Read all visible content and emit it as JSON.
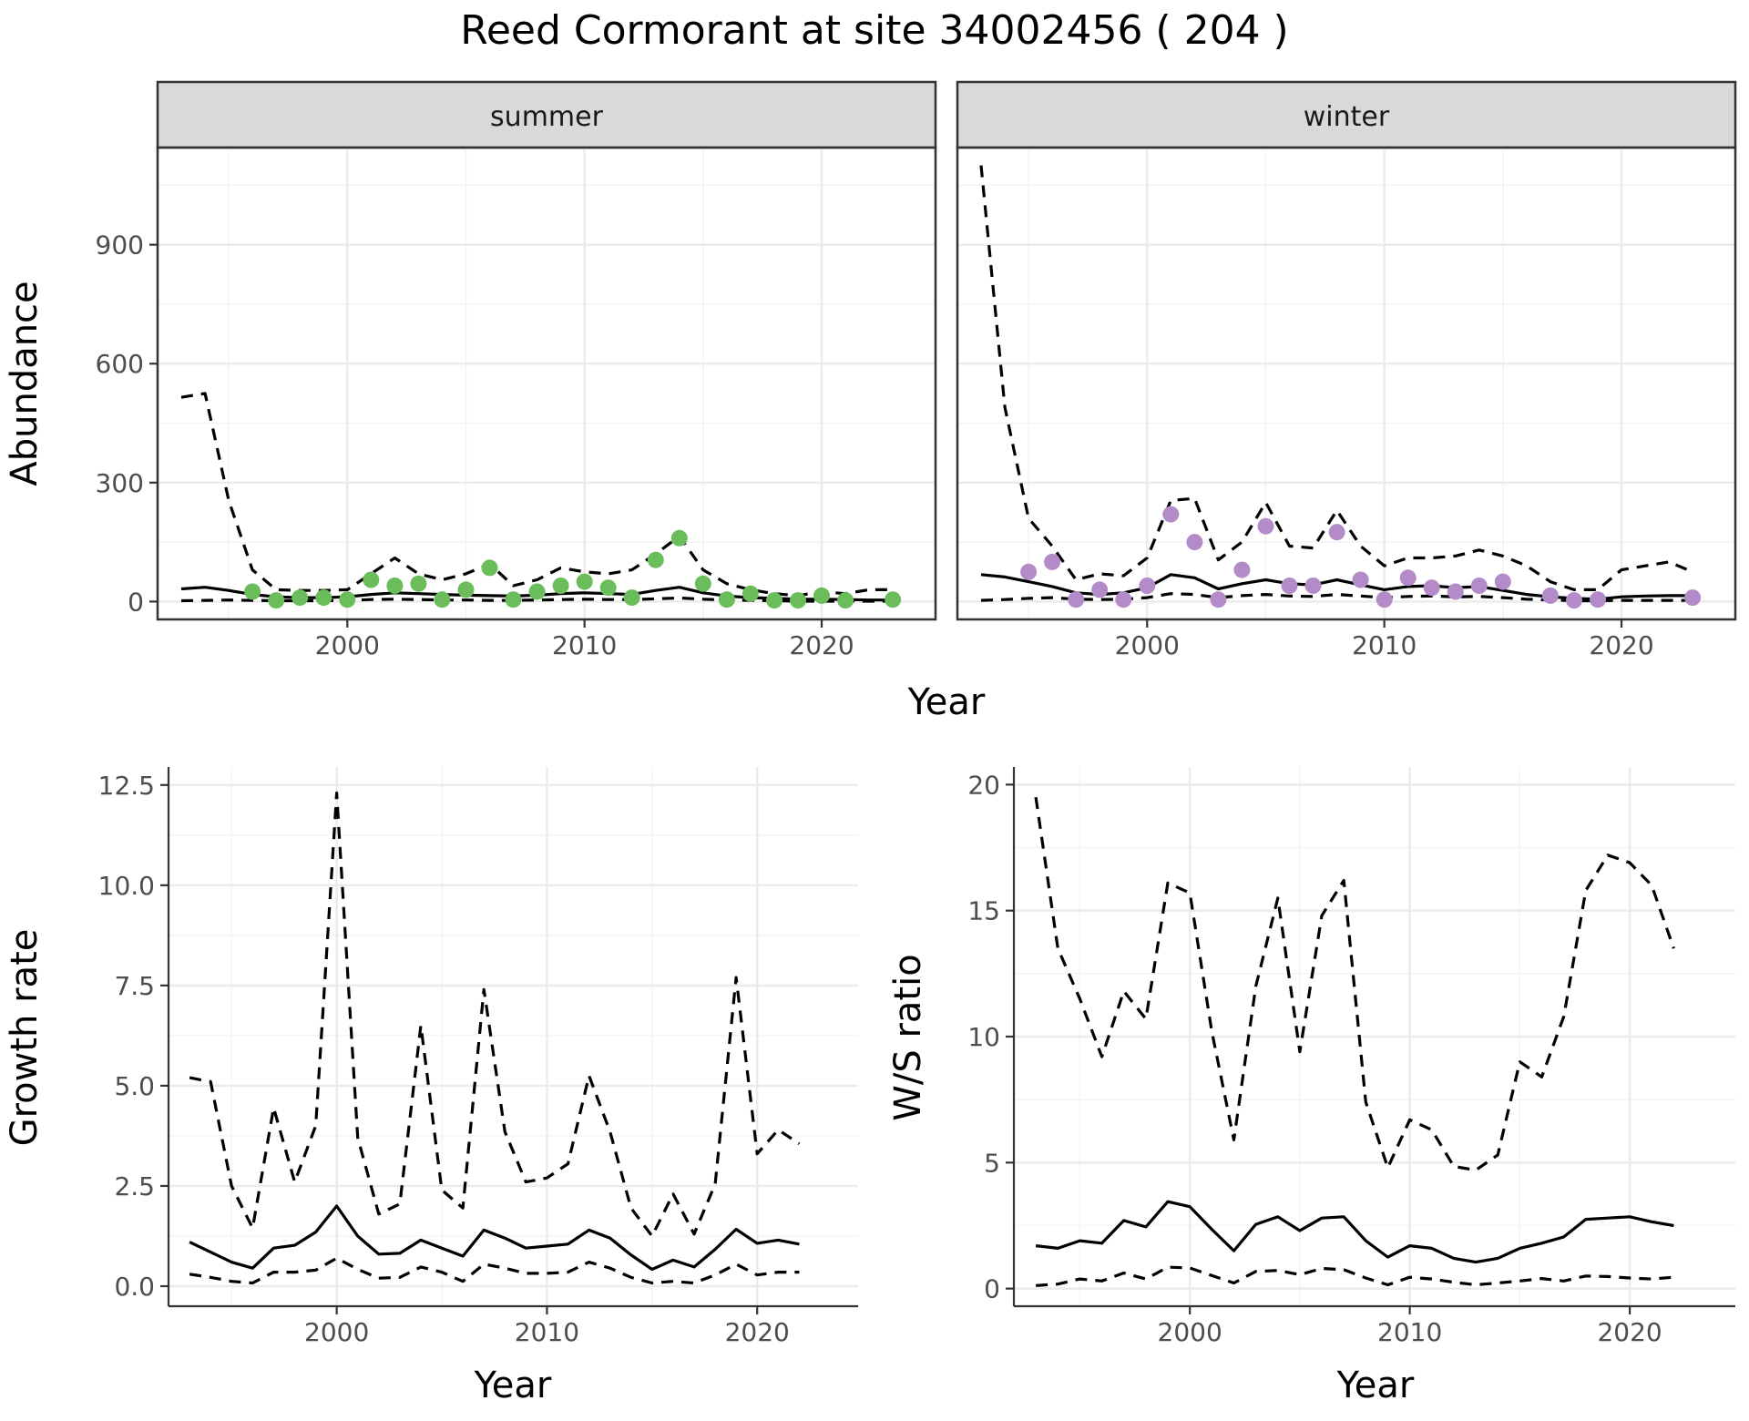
{
  "title": "Reed Cormorant at site 34002456 ( 204 )",
  "colors": {
    "summer_points": "#6bbd5b",
    "winter_points": "#b38bc8",
    "lines": "#000000"
  },
  "chart_data": [
    {
      "type": "line",
      "facet": "summer",
      "xlabel": "Year",
      "ylabel": "Abundance",
      "xlim": [
        1992,
        2024.8
      ],
      "ylim": [
        -45,
        1145
      ],
      "xticks": [
        2000,
        2010,
        2020
      ],
      "yticks": [
        0,
        300,
        600,
        900
      ],
      "point_color": "#6bbd5b",
      "points": {
        "x": [
          1996,
          1997,
          1998,
          1999,
          2000,
          2001,
          2002,
          2003,
          2004,
          2005,
          2006,
          2007,
          2008,
          2009,
          2010,
          2011,
          2012,
          2013,
          2014,
          2015,
          2016,
          2017,
          2018,
          2019,
          2020,
          2021,
          2023
        ],
        "y": [
          25,
          3,
          10,
          10,
          5,
          55,
          40,
          45,
          5,
          30,
          85,
          5,
          25,
          40,
          50,
          35,
          10,
          105,
          160,
          45,
          5,
          20,
          3,
          3,
          15,
          3,
          5
        ]
      },
      "mean": {
        "x": [
          1993,
          1994,
          1995,
          1996,
          1997,
          1998,
          1999,
          2000,
          2001,
          2002,
          2003,
          2004,
          2005,
          2006,
          2007,
          2008,
          2009,
          2010,
          2011,
          2012,
          2013,
          2014,
          2015,
          2016,
          2017,
          2018,
          2019,
          2020,
          2021,
          2022,
          2023
        ],
        "y": [
          32,
          36,
          28,
          18,
          12,
          10,
          10,
          12,
          18,
          22,
          20,
          18,
          16,
          15,
          14,
          16,
          20,
          22,
          20,
          18,
          28,
          36,
          22,
          14,
          10,
          8,
          6,
          6,
          5,
          4,
          4
        ]
      },
      "upper": {
        "x": [
          1993,
          1994,
          1995,
          1996,
          1997,
          1998,
          1999,
          2000,
          2001,
          2002,
          2003,
          2004,
          2005,
          2006,
          2007,
          2008,
          2009,
          2010,
          2011,
          2012,
          2013,
          2014,
          2015,
          2016,
          2017,
          2018,
          2019,
          2020,
          2021,
          2022,
          2023
        ],
        "y": [
          515,
          525,
          255,
          80,
          30,
          28,
          28,
          30,
          70,
          110,
          70,
          55,
          70,
          95,
          40,
          55,
          85,
          75,
          70,
          80,
          120,
          165,
          80,
          45,
          30,
          20,
          15,
          25,
          20,
          30,
          30
        ]
      },
      "lower": {
        "x": [
          1993,
          1994,
          1995,
          1996,
          1997,
          1998,
          1999,
          2000,
          2001,
          2002,
          2003,
          2004,
          2005,
          2006,
          2007,
          2008,
          2009,
          2010,
          2011,
          2012,
          2013,
          2014,
          2015,
          2016,
          2017,
          2018,
          2019,
          2020,
          2021,
          2022,
          2023
        ],
        "y": [
          2,
          3,
          4,
          3,
          2,
          2,
          2,
          3,
          5,
          6,
          5,
          4,
          4,
          3,
          3,
          4,
          5,
          6,
          5,
          5,
          7,
          9,
          6,
          4,
          3,
          2,
          1,
          1,
          1,
          1,
          1
        ]
      }
    },
    {
      "type": "line",
      "facet": "winter",
      "xlabel": "Year",
      "ylabel": "Abundance",
      "xlim": [
        1992,
        2024.8
      ],
      "ylim": [
        -45,
        1145
      ],
      "xticks": [
        2000,
        2010,
        2020
      ],
      "yticks": [
        0,
        300,
        600,
        900
      ],
      "point_color": "#b38bc8",
      "points": {
        "x": [
          1995,
          1996,
          1997,
          1998,
          1999,
          2000,
          2001,
          2002,
          2003,
          2004,
          2005,
          2006,
          2007,
          2008,
          2009,
          2010,
          2011,
          2012,
          2013,
          2014,
          2015,
          2017,
          2018,
          2019,
          2023
        ],
        "y": [
          75,
          100,
          5,
          30,
          5,
          40,
          220,
          150,
          5,
          80,
          190,
          40,
          40,
          175,
          55,
          5,
          60,
          35,
          25,
          40,
          50,
          15,
          3,
          5,
          10
        ]
      },
      "mean": {
        "x": [
          1993,
          1994,
          1995,
          1996,
          1997,
          1998,
          1999,
          2000,
          2001,
          2002,
          2003,
          2004,
          2005,
          2006,
          2007,
          2008,
          2009,
          2010,
          2011,
          2012,
          2013,
          2014,
          2015,
          2016,
          2017,
          2018,
          2019,
          2020,
          2021,
          2022,
          2023
        ],
        "y": [
          68,
          62,
          50,
          38,
          22,
          18,
          22,
          35,
          68,
          60,
          32,
          45,
          55,
          45,
          42,
          55,
          42,
          30,
          38,
          40,
          35,
          38,
          28,
          18,
          12,
          8,
          6,
          12,
          14,
          15,
          15
        ]
      },
      "upper": {
        "x": [
          1993,
          1994,
          1995,
          1996,
          1997,
          1998,
          1999,
          2000,
          2001,
          2002,
          2003,
          2004,
          2005,
          2006,
          2007,
          2008,
          2009,
          2010,
          2011,
          2012,
          2013,
          2014,
          2015,
          2016,
          2017,
          2018,
          2019,
          2020,
          2021,
          2022,
          2023
        ],
        "y": [
          1100,
          490,
          210,
          140,
          55,
          70,
          65,
          110,
          255,
          260,
          105,
          150,
          250,
          140,
          135,
          230,
          140,
          90,
          110,
          110,
          115,
          130,
          115,
          90,
          50,
          30,
          30,
          80,
          90,
          100,
          75
        ]
      },
      "lower": {
        "x": [
          1993,
          1994,
          1995,
          1996,
          1997,
          1998,
          1999,
          2000,
          2001,
          2002,
          2003,
          2004,
          2005,
          2006,
          2007,
          2008,
          2009,
          2010,
          2011,
          2012,
          2013,
          2014,
          2015,
          2016,
          2017,
          2018,
          2019,
          2020,
          2021,
          2022,
          2023
        ],
        "y": [
          3,
          5,
          8,
          10,
          6,
          5,
          6,
          10,
          20,
          18,
          10,
          15,
          18,
          14,
          13,
          18,
          14,
          10,
          13,
          14,
          12,
          13,
          10,
          6,
          4,
          2,
          2,
          3,
          3,
          3,
          3
        ]
      }
    },
    {
      "type": "line",
      "xlabel": "Year",
      "ylabel": "Growth rate",
      "xlim": [
        1992,
        2024.8
      ],
      "ylim": [
        -0.5,
        12.95
      ],
      "xticks": [
        2000,
        2010,
        2020
      ],
      "yticks": [
        0.0,
        2.5,
        5.0,
        7.5,
        10.0,
        12.5
      ],
      "ytick_labels": [
        "0.0",
        "2.5",
        "5.0",
        "7.5",
        "10.0",
        "12.5"
      ],
      "mean": {
        "x": [
          1993,
          1994,
          1995,
          1996,
          1997,
          1998,
          1999,
          2000,
          2001,
          2002,
          2003,
          2004,
          2005,
          2006,
          2007,
          2008,
          2009,
          2010,
          2011,
          2012,
          2013,
          2014,
          2015,
          2016,
          2017,
          2018,
          2019,
          2020,
          2021,
          2022
        ],
        "y": [
          1.1,
          0.85,
          0.6,
          0.45,
          0.95,
          1.02,
          1.35,
          2.0,
          1.25,
          0.8,
          0.82,
          1.15,
          0.95,
          0.75,
          1.4,
          1.2,
          0.95,
          1.0,
          1.05,
          1.4,
          1.2,
          0.78,
          0.42,
          0.65,
          0.48,
          0.92,
          1.42,
          1.07,
          1.15,
          1.05
        ]
      },
      "upper": {
        "x": [
          1993,
          1994,
          1995,
          1996,
          1997,
          1998,
          1999,
          2000,
          2001,
          2002,
          2003,
          2004,
          2005,
          2006,
          2007,
          2008,
          2009,
          2010,
          2011,
          2012,
          2013,
          2014,
          2015,
          2016,
          2017,
          2018,
          2019,
          2020,
          2021,
          2022
        ],
        "y": [
          5.2,
          5.1,
          2.5,
          1.45,
          4.45,
          2.6,
          4.0,
          12.3,
          3.7,
          1.8,
          2.05,
          6.5,
          2.4,
          1.95,
          7.4,
          3.85,
          2.6,
          2.7,
          3.05,
          5.25,
          3.85,
          1.95,
          1.25,
          2.3,
          1.3,
          2.55,
          7.7,
          3.3,
          3.9,
          3.55
        ]
      },
      "lower": {
        "x": [
          1993,
          1994,
          1995,
          1996,
          1997,
          1998,
          1999,
          2000,
          2001,
          2002,
          2003,
          2004,
          2005,
          2006,
          2007,
          2008,
          2009,
          2010,
          2011,
          2012,
          2013,
          2014,
          2015,
          2016,
          2017,
          2018,
          2019,
          2020,
          2021,
          2022
        ],
        "y": [
          0.3,
          0.22,
          0.12,
          0.08,
          0.35,
          0.35,
          0.4,
          0.7,
          0.42,
          0.2,
          0.22,
          0.48,
          0.35,
          0.12,
          0.55,
          0.45,
          0.32,
          0.32,
          0.35,
          0.6,
          0.45,
          0.22,
          0.08,
          0.12,
          0.08,
          0.28,
          0.55,
          0.28,
          0.35,
          0.35
        ]
      }
    },
    {
      "type": "line",
      "xlabel": "Year",
      "ylabel": "W/S ratio",
      "xlim": [
        1992,
        2024.8
      ],
      "ylim": [
        -0.7,
        20.7
      ],
      "xticks": [
        2000,
        2010,
        2020
      ],
      "yticks": [
        0,
        5,
        10,
        15,
        20
      ],
      "ytick_labels": [
        "0",
        "5",
        "10",
        "15",
        "20"
      ],
      "mean": {
        "x": [
          1993,
          1994,
          1995,
          1996,
          1997,
          1998,
          1999,
          2000,
          2001,
          2002,
          2003,
          2004,
          2005,
          2006,
          2007,
          2008,
          2009,
          2010,
          2011,
          2012,
          2013,
          2014,
          2015,
          2016,
          2017,
          2018,
          2019,
          2020,
          2021,
          2022
        ],
        "y": [
          1.7,
          1.6,
          1.9,
          1.8,
          2.7,
          2.45,
          3.45,
          3.25,
          2.35,
          1.5,
          2.55,
          2.85,
          2.3,
          2.8,
          2.85,
          1.9,
          1.25,
          1.7,
          1.6,
          1.2,
          1.05,
          1.2,
          1.6,
          1.8,
          2.05,
          2.75,
          2.8,
          2.85,
          2.65,
          2.5
        ]
      },
      "upper": {
        "x": [
          1993,
          1994,
          1995,
          1996,
          1997,
          1998,
          1999,
          2000,
          2001,
          2002,
          2003,
          2004,
          2005,
          2006,
          2007,
          2008,
          2009,
          2010,
          2011,
          2012,
          2013,
          2014,
          2015,
          2016,
          2017,
          2018,
          2019,
          2020,
          2021,
          2022
        ],
        "y": [
          19.5,
          13.5,
          11.5,
          9.2,
          11.8,
          10.7,
          16.1,
          15.7,
          10.2,
          5.9,
          12.0,
          15.5,
          9.4,
          14.8,
          16.2,
          7.4,
          4.8,
          6.7,
          6.3,
          4.85,
          4.7,
          5.3,
          9.0,
          8.4,
          10.8,
          15.8,
          17.2,
          16.9,
          16.0,
          13.5
        ]
      },
      "lower": {
        "x": [
          1993,
          1994,
          1995,
          1996,
          1997,
          1998,
          1999,
          2000,
          2001,
          2002,
          2003,
          2004,
          2005,
          2006,
          2007,
          2008,
          2009,
          2010,
          2011,
          2012,
          2013,
          2014,
          2015,
          2016,
          2017,
          2018,
          2019,
          2020,
          2021,
          2022
        ],
        "y": [
          0.12,
          0.18,
          0.38,
          0.3,
          0.62,
          0.38,
          0.85,
          0.82,
          0.52,
          0.22,
          0.68,
          0.72,
          0.55,
          0.8,
          0.75,
          0.42,
          0.15,
          0.45,
          0.38,
          0.25,
          0.15,
          0.22,
          0.3,
          0.4,
          0.3,
          0.5,
          0.48,
          0.42,
          0.38,
          0.45
        ]
      }
    }
  ]
}
